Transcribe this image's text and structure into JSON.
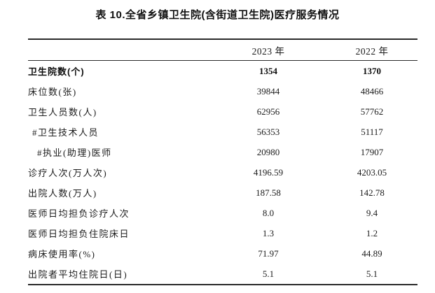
{
  "title": "表 10.全省乡镇卫生院(含街道卫生院)医疗服务情况",
  "table": {
    "label_header": "",
    "columns": [
      "2023 年",
      "2022 年"
    ],
    "rows": [
      {
        "label": "卫生院数(个)",
        "v2023": "1354",
        "v2022": "1370"
      },
      {
        "label": "床位数(张)",
        "v2023": "39844",
        "v2022": "48466"
      },
      {
        "label": "卫生人员数(人)",
        "v2023": "62956",
        "v2022": "57762"
      },
      {
        "label": "#卫生技术人员",
        "v2023": "56353",
        "v2022": "51117"
      },
      {
        "label": "#执业(助理)医师",
        "v2023": "20980",
        "v2022": "17907"
      },
      {
        "label": "诊疗人次(万人次)",
        "v2023": "4196.59",
        "v2022": "4203.05"
      },
      {
        "label": "出院人数(万人)",
        "v2023": "187.58",
        "v2022": "142.78"
      },
      {
        "label": "医师日均担负诊疗人次",
        "v2023": "8.0",
        "v2022": "9.4"
      },
      {
        "label": "医师日均担负住院床日",
        "v2023": "1.3",
        "v2022": "1.2"
      },
      {
        "label": "病床使用率(%)",
        "v2023": "71.97",
        "v2022": "44.89"
      },
      {
        "label": "出院者平均住院日(日)",
        "v2023": "5.1",
        "v2022": "5.1"
      }
    ]
  },
  "colors": {
    "text": "#1c1c1c",
    "rule": "#2a2a2a",
    "background": "#ffffff"
  }
}
